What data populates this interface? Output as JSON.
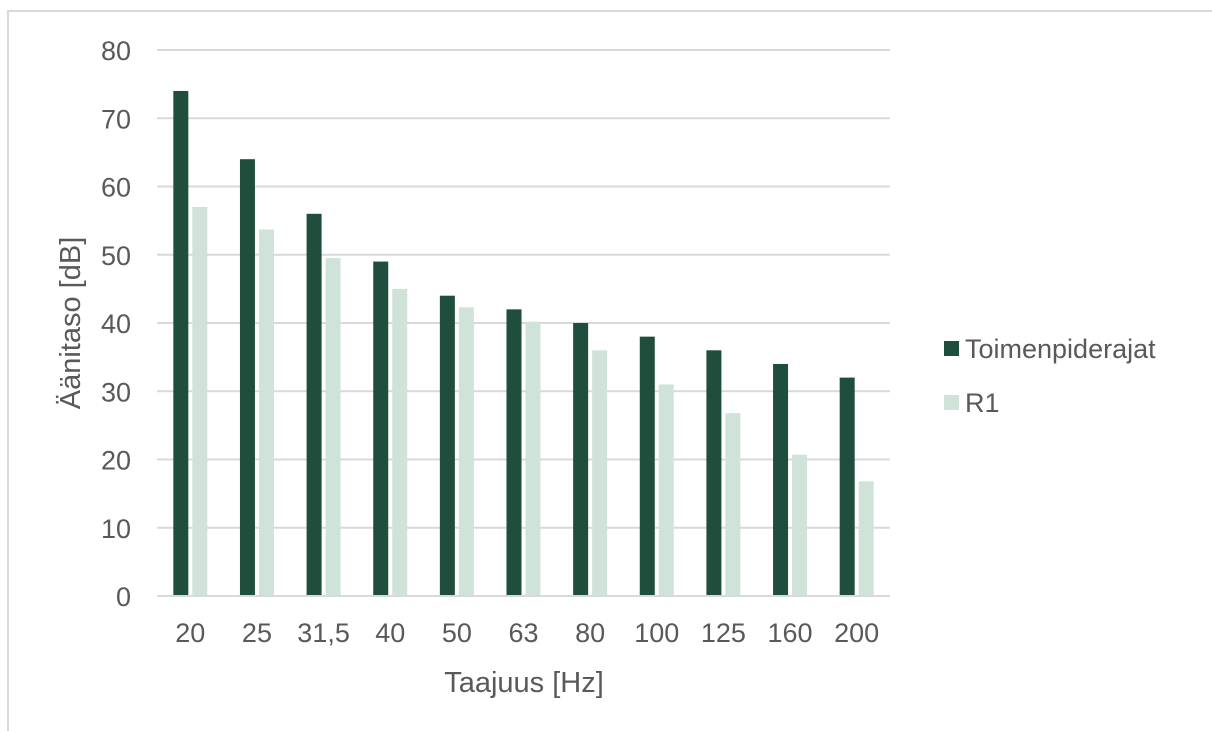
{
  "chart_data": {
    "type": "bar",
    "title": "",
    "xlabel": "Taajuus [Hz]",
    "ylabel": "Äänitaso [dB]",
    "ylim": [
      0,
      80
    ],
    "yticks": [
      0,
      10,
      20,
      30,
      40,
      50,
      60,
      70,
      80
    ],
    "grid": true,
    "legend_position": "right",
    "categories": [
      "20",
      "25",
      "31,5",
      "40",
      "50",
      "63",
      "80",
      "100",
      "125",
      "160",
      "200"
    ],
    "series": [
      {
        "name": "Toimenpiderajat",
        "color": "#1f4e3d",
        "values": [
          74,
          64,
          56,
          49,
          44,
          42,
          40,
          38,
          36,
          34,
          32
        ]
      },
      {
        "name": "R1",
        "color": "#cfe3d8",
        "values": [
          57,
          53.7,
          49.5,
          45,
          42.3,
          40.2,
          36,
          31,
          26.8,
          20.7,
          16.8
        ]
      }
    ]
  }
}
